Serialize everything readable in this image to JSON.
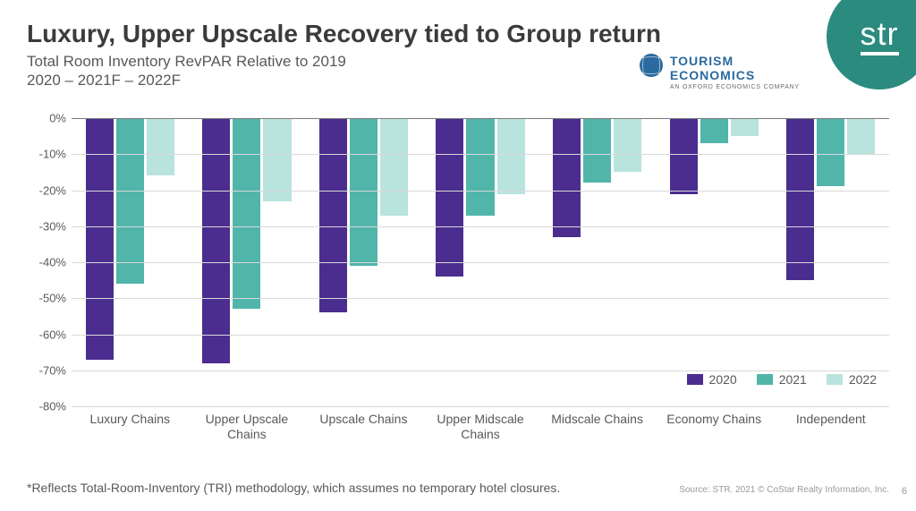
{
  "title": "Luxury, Upper Upscale Recovery tied to Group return",
  "subtitle_line1": "Total Room Inventory RevPAR Relative to 2019",
  "subtitle_line2": "2020 – 2021F – 2022F",
  "logos": {
    "str": "str",
    "te_line1": "TOURISM",
    "te_line2": "ECONOMICS",
    "te_sub": "AN OXFORD ECONOMICS COMPANY"
  },
  "chart": {
    "type": "bar",
    "orientation": "vertical-negative",
    "y_min": -80,
    "y_max": 0,
    "y_ticks": [
      0,
      -10,
      -20,
      -30,
      -40,
      -50,
      -60,
      -70,
      -80
    ],
    "y_tick_labels": [
      "0%",
      "-10%",
      "-20%",
      "-30%",
      "-40%",
      "-50%",
      "-60%",
      "-70%",
      "-80%"
    ],
    "grid_color": "#d9d9d9",
    "baseline_color": "#7a7a7a",
    "background_color": "#ffffff",
    "label_fontsize": 14,
    "series": [
      {
        "name": "2020",
        "color": "#4a2d8f"
      },
      {
        "name": "2021",
        "color": "#51b5aa"
      },
      {
        "name": "2022",
        "color": "#b9e3dd"
      }
    ],
    "categories": [
      "Luxury Chains",
      "Upper Upscale Chains",
      "Upscale Chains",
      "Upper Midscale Chains",
      "Midscale Chains",
      "Economy Chains",
      "Independent"
    ],
    "values": [
      [
        -67,
        -46,
        -16
      ],
      [
        -68,
        -53,
        -23
      ],
      [
        -54,
        -41,
        -27
      ],
      [
        -44,
        -27,
        -21
      ],
      [
        -33,
        -18,
        -15
      ],
      [
        -21,
        -7,
        -5
      ],
      [
        -45,
        -19,
        -10
      ]
    ]
  },
  "legend": {
    "items": [
      "2020",
      "2021",
      "2022"
    ]
  },
  "footnote": "*Reflects Total-Room-Inventory (TRI) methodology, which assumes no temporary hotel closures.",
  "source": "Source: STR. 2021 © CoStar Realty Information, Inc.",
  "page_number": "6"
}
